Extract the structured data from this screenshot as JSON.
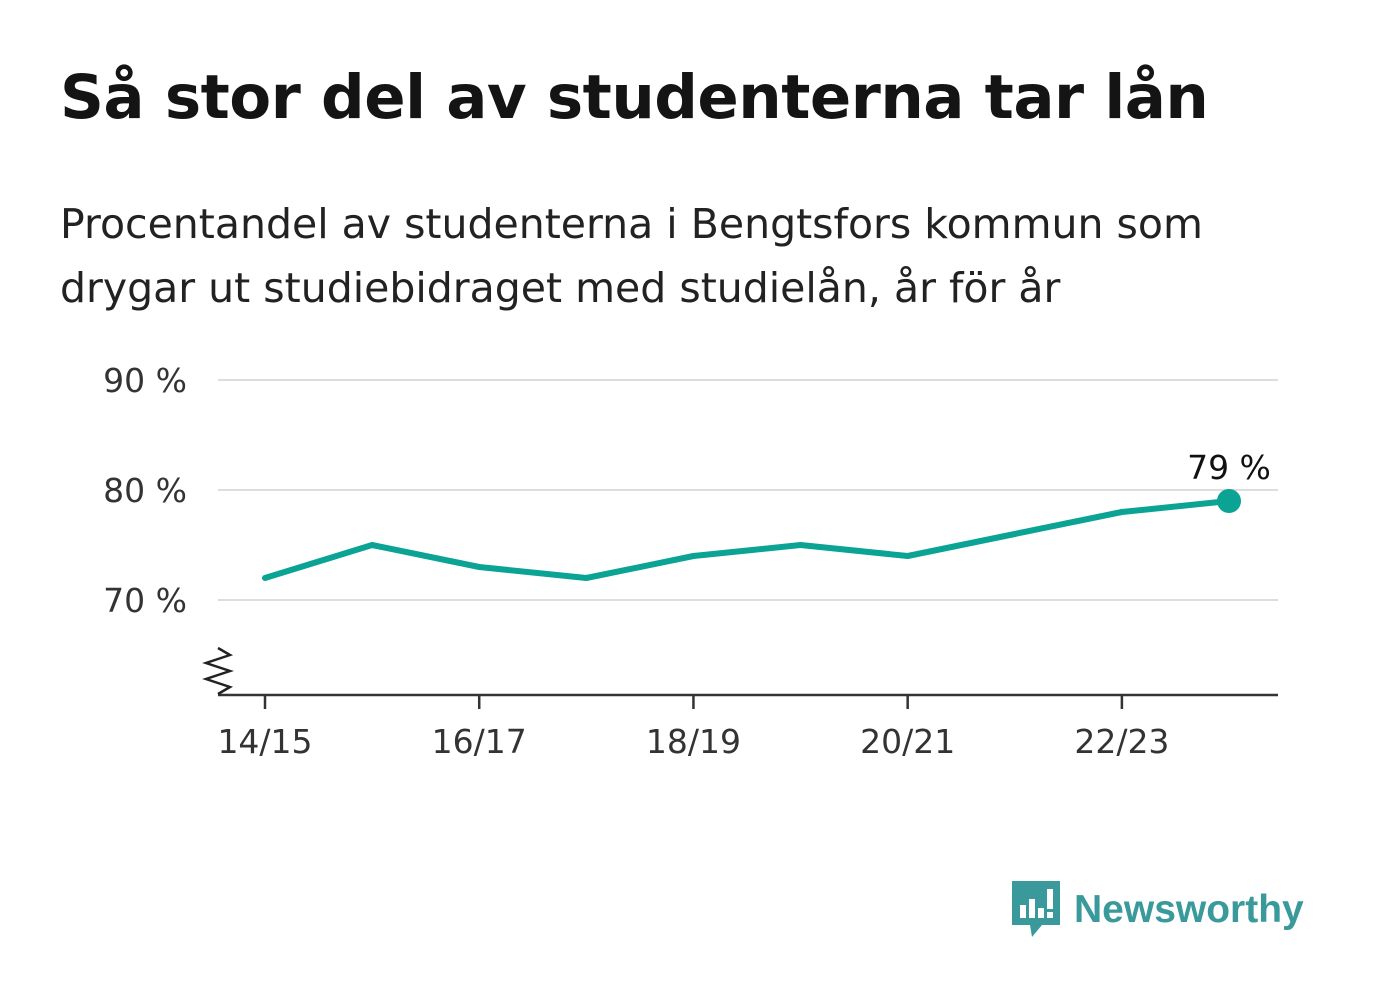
{
  "title": "Så stor del av studenterna tar lån",
  "subtitle": "Procentandel av studenterna i Bengtsfors kommun som drygar ut studiebidraget med studielån, år för år",
  "brand": {
    "name": "Newsworthy",
    "icon": "newsworthy-logo-icon",
    "color": "#3a9a9b"
  },
  "chart_data": {
    "type": "line",
    "x": [
      "14/15",
      "15/16",
      "16/17",
      "17/18",
      "18/19",
      "19/20",
      "20/21",
      "21/22",
      "22/23",
      "23/24"
    ],
    "series": [
      {
        "values": [
          72,
          75,
          73,
          72,
          74,
          75,
          74,
          76,
          78,
          79
        ],
        "color": "#0aa394"
      }
    ],
    "y_ticks": [
      70,
      80,
      90
    ],
    "y_tick_labels": [
      "70 %",
      "80 %",
      "90 %"
    ],
    "x_tick_labels": [
      "14/15",
      "16/17",
      "18/19",
      "20/21",
      "22/23"
    ],
    "ylim": [
      61.3,
      90
    ],
    "axis_break": true,
    "end_label": "79 %",
    "grid": true,
    "xlabel": "",
    "ylabel": ""
  }
}
